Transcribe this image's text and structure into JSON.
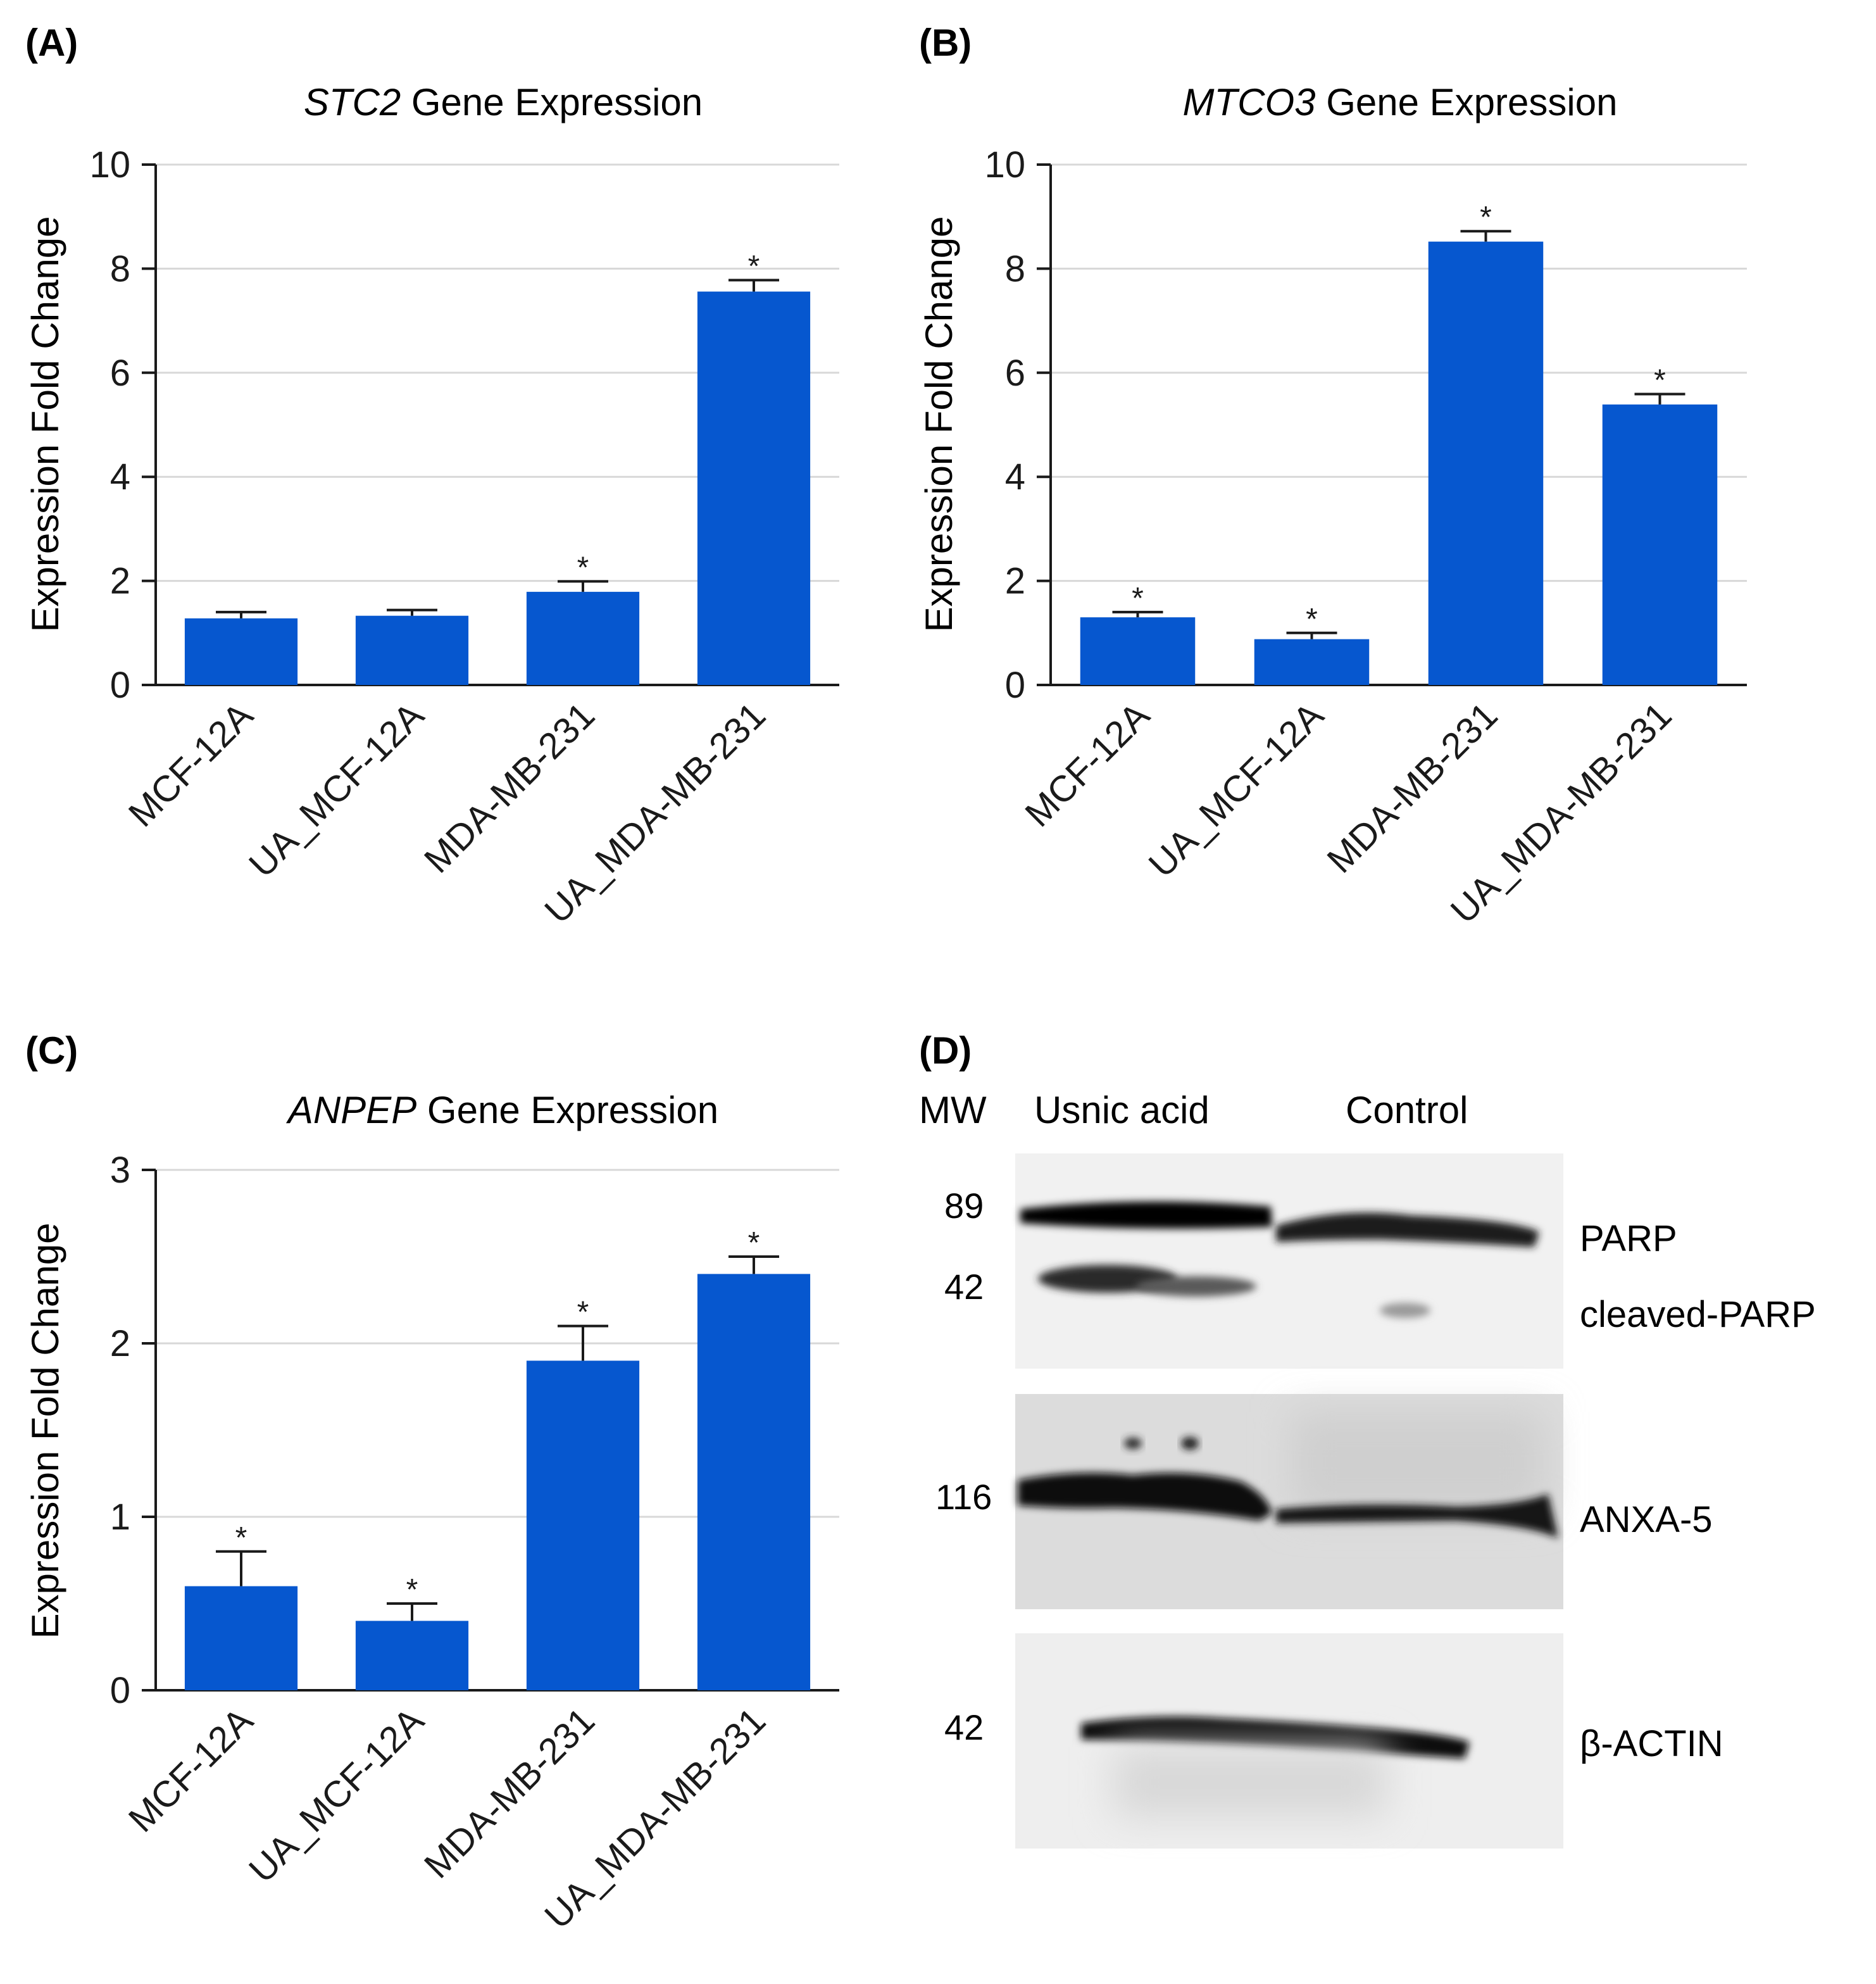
{
  "figure": {
    "colors": {
      "bar": "#0657cf",
      "axis": "#1a1a1a",
      "grid": "#d8d8d8",
      "text": "#1a1a1a"
    }
  },
  "chart_data": [
    {
      "panel": "(A)",
      "type": "bar",
      "title_gene": "STC2",
      "title_rest": " Gene Expression",
      "ylabel": "Expression Fold Change",
      "xlabel": "",
      "ylim": [
        0,
        10
      ],
      "yticks": [
        0,
        2,
        4,
        6,
        8,
        10
      ],
      "grid": true,
      "categories": [
        "MCF-12A",
        "UA_MCF-12A",
        "MDA-MB-231",
        "UA_MDA-MB-231"
      ],
      "values": [
        1.28,
        1.33,
        1.79,
        7.56
      ],
      "errors": [
        0.12,
        0.11,
        0.2,
        0.22
      ],
      "significance": [
        "",
        "",
        "*",
        "*"
      ]
    },
    {
      "panel": "(B)",
      "type": "bar",
      "title_gene": "MTCO3",
      "title_rest": " Gene Expression",
      "ylabel": "Expression Fold Change",
      "xlabel": "",
      "ylim": [
        0,
        10
      ],
      "yticks": [
        0,
        2,
        4,
        6,
        8,
        10
      ],
      "grid": true,
      "categories": [
        "MCF-12A",
        "UA_MCF-12A",
        "MDA-MB-231",
        "UA_MDA-MB-231"
      ],
      "values": [
        1.3,
        0.88,
        8.52,
        5.39
      ],
      "errors": [
        0.1,
        0.12,
        0.2,
        0.2
      ],
      "significance": [
        "*",
        "*",
        "*",
        "*"
      ]
    },
    {
      "panel": "(C)",
      "type": "bar",
      "title_gene": "ANPEP",
      "title_rest": " Gene Expression",
      "ylabel": "Expression Fold Change",
      "xlabel": "",
      "ylim": [
        0,
        3
      ],
      "yticks": [
        0,
        1,
        2,
        3
      ],
      "grid": true,
      "categories": [
        "MCF-12A",
        "UA_MCF-12A",
        "MDA-MB-231",
        "UA_MDA-MB-231"
      ],
      "values": [
        0.6,
        0.4,
        1.9,
        2.4
      ],
      "errors": [
        0.2,
        0.1,
        0.2,
        0.1
      ],
      "significance": [
        "*",
        "*",
        "*",
        "*"
      ]
    }
  ],
  "blot": {
    "panel": "(D)",
    "header": {
      "mw": "MW",
      "lane1": "Usnic acid",
      "lane2": "Control"
    },
    "mw_markers": [
      "89",
      "42",
      "116",
      "42"
    ],
    "proteins": [
      "PARP",
      "cleaved-PARP",
      "ANXA-5",
      "β-ACTIN"
    ]
  }
}
